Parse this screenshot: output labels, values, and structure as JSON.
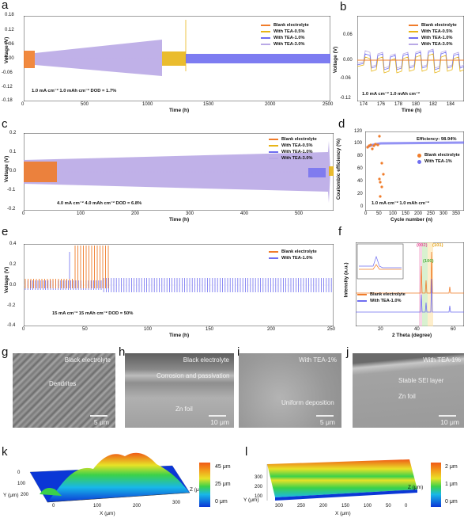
{
  "panels": {
    "a": {
      "letter": "a",
      "ylabel": "Voltage (V)",
      "xlabel": "Time (h)",
      "yticks": [
        "0.18",
        "0.12",
        "0.06",
        "0.00",
        "-0.06",
        "-0.12",
        "-0.18"
      ],
      "xticks": [
        "0",
        "500",
        "1000",
        "1500",
        "2000",
        "2500"
      ],
      "legend": [
        "Blank electrolyte",
        "With TEA-0.5%",
        "With TEA-1.0%",
        "With TEA-3.0%"
      ],
      "annot": "1.0 mA cm⁻²   1.0 mAh cm⁻²     DOD = 1.7%"
    },
    "b": {
      "letter": "b",
      "ylabel": "Voltage (V)",
      "xlabel": "Time (h)",
      "yticks": [
        "0.06",
        "0.00",
        "-0.06",
        "-0.12"
      ],
      "xticks": [
        "174",
        "176",
        "178",
        "180",
        "182",
        "184"
      ],
      "legend": [
        "Blank electrolyte",
        "With TEA-0.5%",
        "With TEA-1.0%",
        "With TEA-3.0%"
      ],
      "annot": "1.0 mA cm⁻² 1.0 mAh cm⁻²"
    },
    "c": {
      "letter": "c",
      "ylabel": "Voltage (V)",
      "xlabel": "Time (h)",
      "yticks": [
        "0.2",
        "0.1",
        "0.0",
        "-0.1",
        "-0.2"
      ],
      "xticks": [
        "0",
        "100",
        "200",
        "300",
        "400",
        "500"
      ],
      "legend": [
        "Blank electrolyte",
        "With TEA-0.5%",
        "With TEA-1.0%",
        "With TEA-3.0%"
      ],
      "annot": "4.0 mA cm⁻²    4.0 mAh cm⁻²     DOD = 6.8%"
    },
    "d": {
      "letter": "d",
      "ylabel": "Coulombic efficiency (%)",
      "xlabel": "Cycle number (n)",
      "yticks": [
        "120",
        "100",
        "80",
        "60",
        "40",
        "20",
        "0"
      ],
      "xticks": [
        "0",
        "50",
        "100",
        "150",
        "200",
        "250",
        "300",
        "350"
      ],
      "legend": [
        "Blank electrolyte",
        "With TEA-1%"
      ],
      "efficiency": "Efficiency: 98.94%",
      "annot": "1.0 mA cm⁻²  1.0 mAh cm⁻²"
    },
    "e": {
      "letter": "e",
      "ylabel": "Voltage (V)",
      "xlabel": "Time (h)",
      "yticks": [
        "0.4",
        "0.2",
        "0.0",
        "-0.2",
        "-0.4"
      ],
      "xticks": [
        "0",
        "50",
        "100",
        "150",
        "200",
        "250"
      ],
      "legend": [
        "Blank electrolyte",
        "With TEA-1.0%"
      ],
      "annot": "15 mA cm⁻²  15 mAh cm⁻²          DOD = 50%"
    },
    "f": {
      "letter": "f",
      "ylabel": "Intensity (a.u.)",
      "xlabel": "2 Theta (degree)",
      "xticks": [
        "20",
        "40",
        "60"
      ],
      "peaks": [
        "(002)",
        "(100)",
        "(101)"
      ],
      "legend": [
        "Blank electrolyte",
        "With TEA-1.0%"
      ]
    },
    "g": {
      "letter": "g",
      "title": "Black electrolyte",
      "label": "Dendrites",
      "scale": "5 μm"
    },
    "h": {
      "letter": "h",
      "title": "Black electrolyte",
      "label": "Corrosion and passivation",
      "label2": "Zn foil",
      "scale": "10 μm"
    },
    "i": {
      "letter": "i",
      "title": "With TEA-1%",
      "label": "Uniform deposition",
      "scale": "5 μm"
    },
    "j": {
      "letter": "j",
      "title": "With TEA-1%",
      "label": "Stable SEI layer",
      "label2": "Zn foil",
      "scale": "10 μm"
    },
    "k": {
      "letter": "k",
      "cbar": [
        "45 μm",
        "25 μm",
        "0 μm"
      ],
      "xlabel": "X (μm)",
      "ylabel": "Y (μm)",
      "zlabel": "Z (μm)",
      "xticks": [
        "0",
        "100",
        "200",
        "300"
      ],
      "yticks": [
        "0",
        "100",
        "200"
      ]
    },
    "l": {
      "letter": "l",
      "cbar": [
        "2 μm",
        "1 μm",
        "0 μm"
      ],
      "xlabel": "X (μm)",
      "ylabel": "Y (μm)",
      "zlabel": "Z (μm)",
      "xticks": [
        "300",
        "250",
        "200",
        "150",
        "100",
        "50",
        "0"
      ],
      "yticks": [
        "300",
        "200",
        "100"
      ]
    }
  },
  "colors": {
    "blank": "#f07c2a",
    "tea05": "#e8b517",
    "tea10": "#6f6ef0",
    "tea30": "#b9a9e6"
  }
}
